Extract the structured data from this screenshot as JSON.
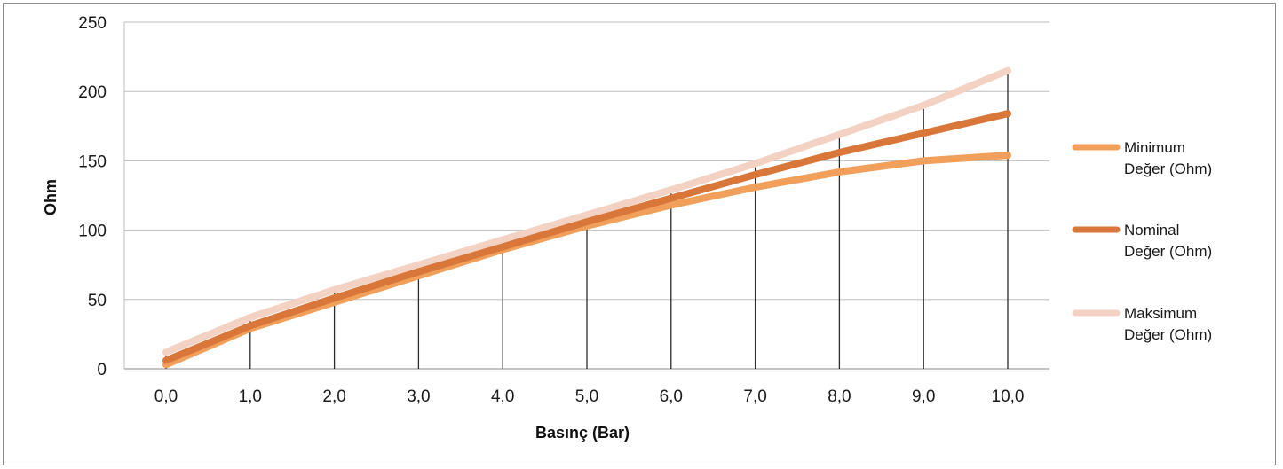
{
  "chart_data": {
    "type": "line",
    "title": "",
    "xlabel": "Basınç (Bar)",
    "ylabel": "Ohm",
    "x": [
      0,
      1,
      2,
      3,
      4,
      5,
      6,
      7,
      8,
      9,
      10
    ],
    "x_tick_labels": [
      "0,0",
      "1,0",
      "2,0",
      "3,0",
      "4,0",
      "5,0",
      "6,0",
      "7,0",
      "8,0",
      "9,0",
      "10,0"
    ],
    "y_ticks": [
      0,
      50,
      100,
      150,
      200,
      250
    ],
    "ylim": [
      0,
      250
    ],
    "grid": "horizontal",
    "legend_position": "right",
    "series": [
      {
        "name_lines": [
          "Minimum",
          "Değer (Ohm)"
        ],
        "color": "#f0a05a",
        "values": [
          3,
          29,
          48,
          67,
          86,
          103,
          118,
          131,
          142,
          150,
          154
        ]
      },
      {
        "name_lines": [
          "Nominal",
          "Değer (Ohm)"
        ],
        "color": "#d9773a",
        "values": [
          6,
          31,
          51,
          70,
          88,
          106,
          123,
          140,
          156,
          170,
          184
        ]
      },
      {
        "name_lines": [
          "Maksimum",
          "Değer (Ohm)"
        ],
        "color": "#f3d2c4",
        "values": [
          12,
          37,
          57,
          75,
          93,
          111,
          129,
          148,
          169,
          190,
          215
        ]
      }
    ],
    "drop_lines": true
  }
}
